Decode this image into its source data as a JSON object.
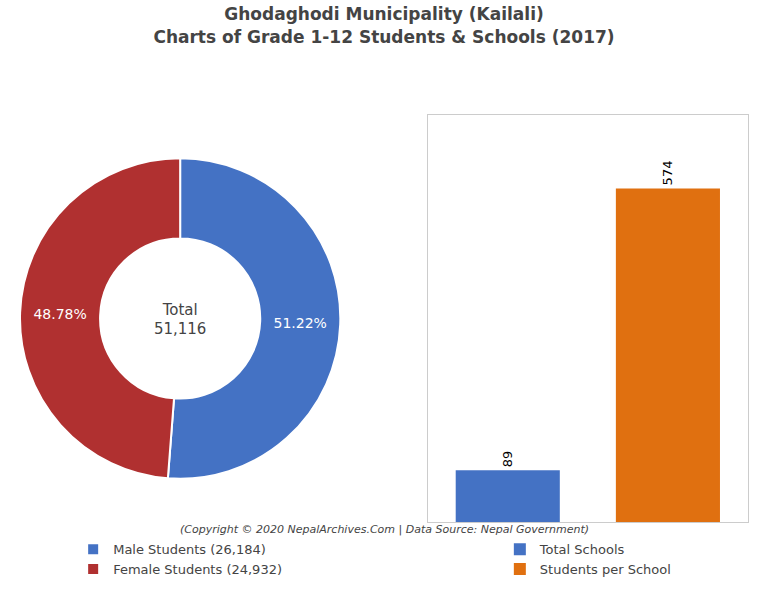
{
  "chart_data": [
    {
      "type": "pie",
      "title": "Ghodaghodi Municipality (Kailali)\nCharts of Grade 1-12 Students & Schools (2017)",
      "subtitle": "(Copyright © 2020 NepalArchives.Com | Data Source: Nepal Government)",
      "categories": [
        "Male Students (26,184)",
        "Female Students (24,932)"
      ],
      "values": [
        51.22,
        48.78
      ],
      "value_labels": [
        "51.22%",
        "48.78%"
      ],
      "data_labels": true,
      "colors": [
        "#4472c4",
        "#b03030"
      ],
      "annotations": [
        "Total",
        "51,116"
      ],
      "legend": "bottom"
    },
    {
      "type": "bar",
      "categories": [
        "Total Schools",
        "Students per School"
      ],
      "values": [
        89,
        574
      ],
      "colors": [
        "#4472c4",
        "#e07010"
      ],
      "ylim": [
        0,
        700.28
      ],
      "data_labels": true,
      "tick_labels": false,
      "grid": false,
      "legend": "bottom"
    }
  ]
}
